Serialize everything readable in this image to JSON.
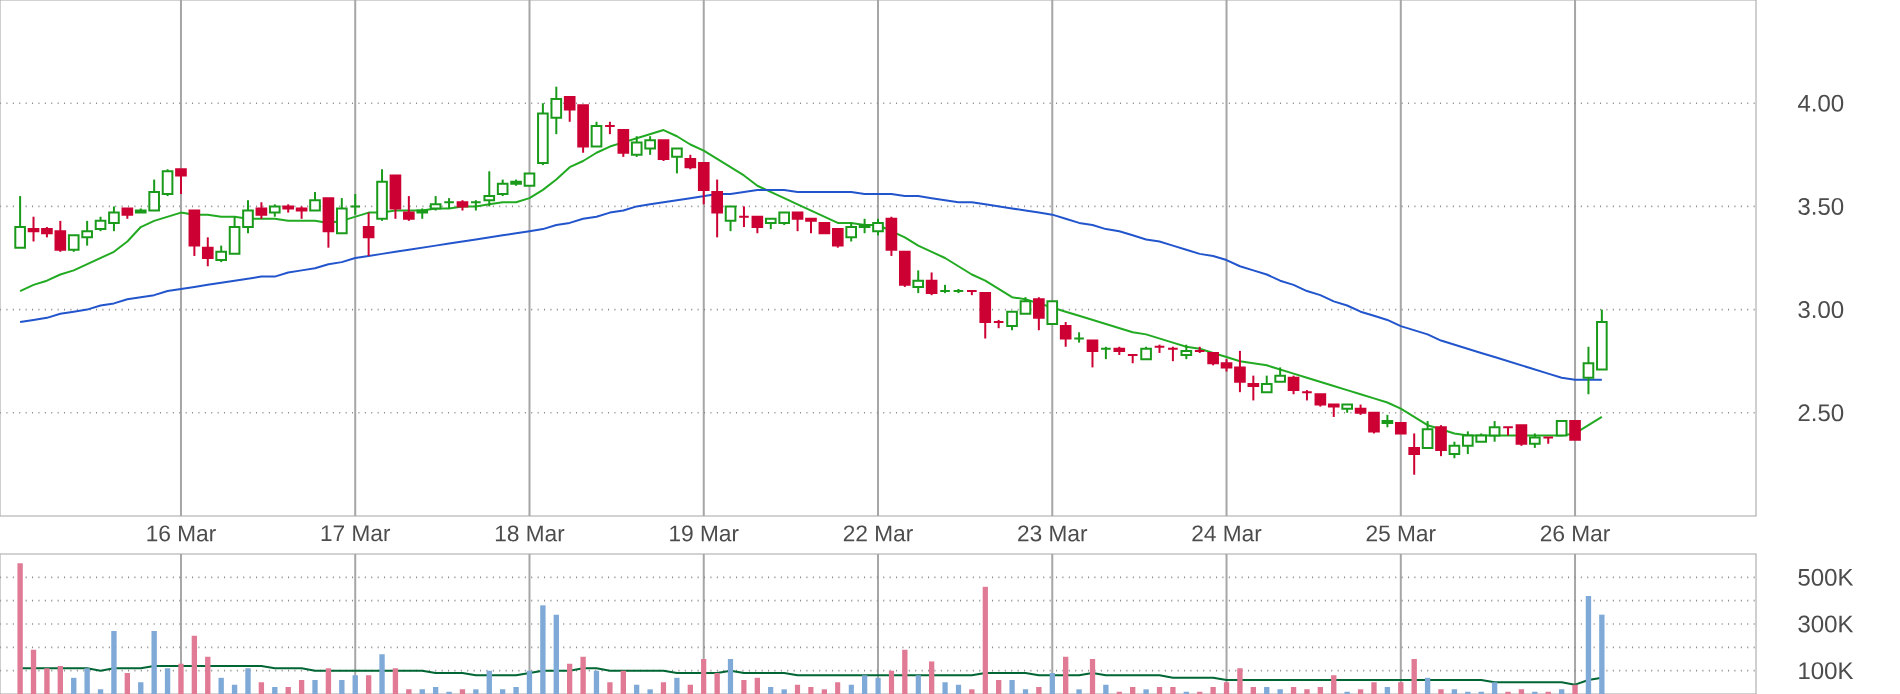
{
  "chart_data": [
    {
      "type": "candlestick",
      "grid": true,
      "categories": [
        null,
        null,
        null,
        null,
        null,
        null,
        null,
        null,
        null,
        null,
        null,
        null,
        null,
        "16 Mar",
        null,
        null,
        null,
        null,
        null,
        null,
        null,
        null,
        null,
        null,
        null,
        null,
        "17 Mar",
        null,
        null,
        null,
        null,
        null,
        null,
        null,
        null,
        null,
        null,
        null,
        null,
        "18 Mar",
        null,
        null,
        null,
        null,
        null,
        null,
        null,
        null,
        null,
        null,
        null,
        null,
        "19 Mar",
        null,
        null,
        null,
        null,
        null,
        null,
        null,
        null,
        null,
        null,
        null,
        null,
        "22 Mar",
        null,
        null,
        null,
        null,
        null,
        null,
        null,
        null,
        null,
        null,
        null,
        null,
        "23 Mar",
        null,
        null,
        null,
        null,
        null,
        null,
        null,
        null,
        null,
        null,
        null,
        null,
        "24 Mar",
        null,
        null,
        null,
        null,
        null,
        null,
        null,
        null,
        null,
        null,
        null,
        null,
        "25 Mar",
        null,
        null,
        null,
        null,
        null,
        null,
        null,
        null,
        null,
        null,
        null,
        null,
        "26 Mar",
        null,
        null,
        null,
        null,
        null,
        null,
        null,
        null,
        null,
        null,
        null,
        null,
        null
      ],
      "ohlc": [
        null,
        [
          3.3,
          3.55,
          3.3,
          3.4
        ],
        [
          3.39,
          3.45,
          3.33,
          3.38
        ],
        [
          3.39,
          3.4,
          3.35,
          3.37
        ],
        [
          3.38,
          3.43,
          3.28,
          3.29
        ],
        [
          3.29,
          3.36,
          3.28,
          3.36
        ],
        [
          3.35,
          3.43,
          3.31,
          3.38
        ],
        [
          3.39,
          3.45,
          3.38,
          3.43
        ],
        [
          3.42,
          3.5,
          3.38,
          3.47
        ],
        [
          3.49,
          3.49,
          3.44,
          3.46
        ],
        [
          3.47,
          3.49,
          3.47,
          3.48
        ],
        [
          3.48,
          3.63,
          3.48,
          3.57
        ],
        [
          3.56,
          3.68,
          3.55,
          3.67
        ],
        [
          3.68,
          3.68,
          3.56,
          3.65
        ],
        [
          3.48,
          3.48,
          3.26,
          3.31
        ],
        [
          3.3,
          3.35,
          3.21,
          3.25
        ],
        [
          3.24,
          3.31,
          3.23,
          3.28
        ],
        [
          3.27,
          3.45,
          3.27,
          3.4
        ],
        [
          3.4,
          3.53,
          3.37,
          3.48
        ],
        [
          3.49,
          3.52,
          3.44,
          3.46
        ],
        [
          3.47,
          3.51,
          3.45,
          3.5
        ],
        [
          3.5,
          3.51,
          3.47,
          3.49
        ],
        [
          3.49,
          3.5,
          3.44,
          3.48
        ],
        [
          3.48,
          3.57,
          3.48,
          3.53
        ],
        [
          3.54,
          3.54,
          3.3,
          3.38
        ],
        [
          3.37,
          3.54,
          3.37,
          3.49
        ],
        [
          3.5,
          3.56,
          3.46,
          3.5
        ],
        [
          3.4,
          3.47,
          3.26,
          3.35
        ],
        [
          3.44,
          3.68,
          3.43,
          3.62
        ],
        [
          3.65,
          3.65,
          3.44,
          3.49
        ],
        [
          3.47,
          3.55,
          3.43,
          3.44
        ],
        [
          3.47,
          3.49,
          3.44,
          3.48
        ],
        [
          3.49,
          3.55,
          3.48,
          3.51
        ],
        [
          3.52,
          3.54,
          3.49,
          3.52
        ],
        [
          3.52,
          3.53,
          3.48,
          3.5
        ],
        [
          3.52,
          3.53,
          3.48,
          3.52
        ],
        [
          3.53,
          3.67,
          3.5,
          3.55
        ],
        [
          3.56,
          3.63,
          3.55,
          3.61
        ],
        [
          3.61,
          3.63,
          3.6,
          3.62
        ],
        [
          3.6,
          3.66,
          3.6,
          3.66
        ],
        [
          3.71,
          4.0,
          3.7,
          3.95
        ],
        [
          3.93,
          4.08,
          3.85,
          4.02
        ],
        [
          4.03,
          4.03,
          3.91,
          3.97
        ],
        [
          3.99,
          3.99,
          3.76,
          3.79
        ],
        [
          3.79,
          3.91,
          3.79,
          3.89
        ],
        [
          3.89,
          3.91,
          3.85,
          3.89
        ],
        [
          3.87,
          3.87,
          3.74,
          3.76
        ],
        [
          3.75,
          3.84,
          3.74,
          3.81
        ],
        [
          3.78,
          3.84,
          3.75,
          3.82
        ],
        [
          3.82,
          3.82,
          3.72,
          3.73
        ],
        [
          3.74,
          3.78,
          3.66,
          3.78
        ],
        [
          3.73,
          3.75,
          3.68,
          3.69
        ],
        [
          3.71,
          3.71,
          3.51,
          3.58
        ],
        [
          3.57,
          3.63,
          3.35,
          3.47
        ],
        [
          3.43,
          3.5,
          3.38,
          3.5
        ],
        [
          3.45,
          3.5,
          3.4,
          3.45
        ],
        [
          3.45,
          3.45,
          3.37,
          3.4
        ],
        [
          3.42,
          3.44,
          3.39,
          3.44
        ],
        [
          3.42,
          3.47,
          3.41,
          3.47
        ],
        [
          3.47,
          3.47,
          3.38,
          3.44
        ],
        [
          3.44,
          3.44,
          3.37,
          3.43
        ],
        [
          3.42,
          3.42,
          3.37,
          3.37
        ],
        [
          3.39,
          3.39,
          3.3,
          3.31
        ],
        [
          3.35,
          3.42,
          3.33,
          3.4
        ],
        [
          3.4,
          3.44,
          3.37,
          3.41
        ],
        [
          3.38,
          3.44,
          3.36,
          3.42
        ],
        [
          3.44,
          3.45,
          3.26,
          3.29
        ],
        [
          3.28,
          3.28,
          3.11,
          3.12
        ],
        [
          3.11,
          3.19,
          3.08,
          3.14
        ],
        [
          3.14,
          3.18,
          3.07,
          3.08
        ],
        [
          3.09,
          3.12,
          3.08,
          3.09
        ],
        [
          3.09,
          3.1,
          3.08,
          3.09
        ],
        [
          3.09,
          3.09,
          3.07,
          3.09
        ],
        [
          3.08,
          3.08,
          2.86,
          2.94
        ],
        [
          2.94,
          2.95,
          2.91,
          2.94
        ],
        [
          2.92,
          2.99,
          2.9,
          2.99
        ],
        [
          2.98,
          3.06,
          2.98,
          3.04
        ],
        [
          3.05,
          3.06,
          2.9,
          2.96
        ],
        [
          2.93,
          3.04,
          2.93,
          3.04
        ],
        [
          2.92,
          2.94,
          2.82,
          2.86
        ],
        [
          2.86,
          2.89,
          2.84,
          2.86
        ],
        [
          2.85,
          2.85,
          2.72,
          2.8
        ],
        [
          2.81,
          2.82,
          2.76,
          2.81
        ],
        [
          2.81,
          2.82,
          2.78,
          2.8
        ],
        [
          2.78,
          2.78,
          2.74,
          2.78
        ],
        [
          2.76,
          2.82,
          2.76,
          2.81
        ],
        [
          2.82,
          2.83,
          2.79,
          2.82
        ],
        [
          2.81,
          2.82,
          2.75,
          2.81
        ],
        [
          2.78,
          2.83,
          2.76,
          2.8
        ],
        [
          2.8,
          2.82,
          2.79,
          2.8
        ],
        [
          2.79,
          2.79,
          2.73,
          2.74
        ],
        [
          2.74,
          2.76,
          2.7,
          2.72
        ],
        [
          2.72,
          2.8,
          2.6,
          2.65
        ],
        [
          2.64,
          2.68,
          2.56,
          2.63
        ],
        [
          2.6,
          2.68,
          2.6,
          2.64
        ],
        [
          2.65,
          2.72,
          2.65,
          2.68
        ],
        [
          2.67,
          2.68,
          2.59,
          2.61
        ],
        [
          2.6,
          2.61,
          2.56,
          2.6
        ],
        [
          2.59,
          2.59,
          2.53,
          2.54
        ],
        [
          2.54,
          2.54,
          2.48,
          2.53
        ],
        [
          2.52,
          2.54,
          2.5,
          2.54
        ],
        [
          2.52,
          2.54,
          2.49,
          2.5
        ],
        [
          2.5,
          2.5,
          2.4,
          2.41
        ],
        [
          2.45,
          2.49,
          2.43,
          2.46
        ],
        [
          2.45,
          2.45,
          2.4,
          2.4
        ],
        [
          2.33,
          2.4,
          2.2,
          2.3
        ],
        [
          2.33,
          2.46,
          2.33,
          2.42
        ],
        [
          2.43,
          2.44,
          2.29,
          2.32
        ],
        [
          2.3,
          2.36,
          2.28,
          2.34
        ],
        [
          2.34,
          2.41,
          2.3,
          2.39
        ],
        [
          2.36,
          2.4,
          2.36,
          2.39
        ],
        [
          2.39,
          2.46,
          2.36,
          2.43
        ],
        [
          2.43,
          2.43,
          2.39,
          2.43
        ],
        [
          2.44,
          2.44,
          2.34,
          2.35
        ],
        [
          2.35,
          2.4,
          2.33,
          2.38
        ],
        [
          2.38,
          2.38,
          2.35,
          2.38
        ],
        [
          2.39,
          2.46,
          2.39,
          2.46
        ],
        [
          2.46,
          2.46,
          2.37,
          2.37
        ],
        [
          2.67,
          2.82,
          2.59,
          2.74
        ],
        [
          2.71,
          3.0,
          2.71,
          2.94
        ],
        null,
        null,
        null,
        null,
        null,
        null,
        null,
        null,
        null,
        null,
        null
      ],
      "colors": [
        null,
        "#1a9a1a",
        "#cc0033",
        "#cc0033",
        "#cc0033",
        "#1a9a1a",
        "#1a9a1a",
        "#1a9a1a",
        "#1a9a1a",
        "#cc0033",
        "#1a9a1a",
        "#1a9a1a",
        "#1a9a1a",
        "#cc0033",
        "#cc0033",
        "#cc0033",
        "#1a9a1a",
        "#1a9a1a",
        "#1a9a1a",
        "#cc0033",
        "#1a9a1a",
        "#cc0033",
        "#cc0033",
        "#1a9a1a",
        "#cc0033",
        "#1a9a1a",
        "#1a9a1a",
        "#cc0033",
        "#1a9a1a",
        "#cc0033",
        "#cc0033",
        "#1a9a1a",
        "#1a9a1a",
        "#1a9a1a",
        "#cc0033",
        "#1a9a1a",
        "#1a9a1a",
        "#1a9a1a",
        "#1a9a1a",
        "#1a9a1a",
        "#1a9a1a",
        "#1a9a1a",
        "#cc0033",
        "#cc0033",
        "#1a9a1a",
        "#cc0033",
        "#cc0033",
        "#1a9a1a",
        "#1a9a1a",
        "#cc0033",
        "#1a9a1a",
        "#cc0033",
        "#cc0033",
        "#cc0033",
        "#1a9a1a",
        "#cc0033",
        "#cc0033",
        "#1a9a1a",
        "#1a9a1a",
        "#cc0033",
        "#cc0033",
        "#cc0033",
        "#cc0033",
        "#1a9a1a",
        "#1a9a1a",
        "#1a9a1a",
        "#cc0033",
        "#cc0033",
        "#1a9a1a",
        "#cc0033",
        "#1a9a1a",
        "#1a9a1a",
        "#cc0033",
        "#cc0033",
        "#cc0033",
        "#1a9a1a",
        "#1a9a1a",
        "#cc0033",
        "#1a9a1a",
        "#cc0033",
        "#1a9a1a",
        "#cc0033",
        "#1a9a1a",
        "#cc0033",
        "#cc0033",
        "#1a9a1a",
        "#cc0033",
        "#cc0033",
        "#1a9a1a",
        "#cc0033",
        "#cc0033",
        "#cc0033",
        "#cc0033",
        "#cc0033",
        "#1a9a1a",
        "#1a9a1a",
        "#cc0033",
        "#cc0033",
        "#cc0033",
        "#cc0033",
        "#1a9a1a",
        "#cc0033",
        "#cc0033",
        "#1a9a1a",
        "#cc0033",
        "#cc0033",
        "#1a9a1a",
        "#cc0033",
        "#1a9a1a",
        "#1a9a1a",
        "#1a9a1a",
        "#1a9a1a",
        "#cc0033",
        "#cc0033",
        "#1a9a1a",
        "#cc0033",
        "#1a9a1a",
        "#cc0033",
        "#1a9a1a",
        "#1a9a1a",
        null,
        null,
        null,
        null,
        null,
        null,
        null,
        null,
        null,
        null,
        null
      ],
      "series": [
        {
          "type": "line",
          "color": "#22aa22",
          "values": [
            null,
            3.09,
            3.12,
            3.14,
            3.17,
            3.19,
            3.22,
            3.25,
            3.28,
            3.33,
            3.4,
            3.43,
            3.45,
            3.47,
            3.46,
            3.46,
            3.45,
            3.45,
            3.44,
            3.44,
            3.44,
            3.43,
            3.43,
            3.43,
            3.42,
            3.43,
            3.45,
            3.47,
            3.47,
            3.48,
            3.48,
            3.48,
            3.49,
            3.49,
            3.5,
            3.5,
            3.51,
            3.52,
            3.52,
            3.54,
            3.58,
            3.63,
            3.69,
            3.72,
            3.76,
            3.79,
            3.81,
            3.83,
            3.85,
            3.87,
            3.84,
            3.8,
            3.77,
            3.73,
            3.69,
            3.65,
            3.6,
            3.57,
            3.54,
            3.51,
            3.48,
            3.45,
            3.42,
            3.42,
            3.41,
            3.41,
            3.38,
            3.35,
            3.31,
            3.28,
            3.25,
            3.21,
            3.17,
            3.14,
            3.1,
            3.06,
            3.05,
            3.03,
            3.01,
            2.99,
            2.97,
            2.95,
            2.93,
            2.91,
            2.89,
            2.88,
            2.86,
            2.84,
            2.82,
            2.81,
            2.79,
            2.77,
            2.75,
            2.74,
            2.73,
            2.71,
            2.69,
            2.67,
            2.65,
            2.63,
            2.61,
            2.59,
            2.57,
            2.55,
            2.52,
            2.48,
            2.44,
            2.42,
            2.4,
            2.39,
            2.39,
            2.39,
            2.39,
            2.39,
            2.39,
            2.39,
            2.39,
            2.4,
            2.44,
            2.48,
            null,
            null,
            null,
            null,
            null,
            null,
            null,
            null,
            null,
            null,
            null
          ]
        },
        {
          "type": "line",
          "color": "#2255cc",
          "values": [
            null,
            2.94,
            2.95,
            2.96,
            2.98,
            2.99,
            3.0,
            3.02,
            3.03,
            3.05,
            3.06,
            3.07,
            3.09,
            3.1,
            3.11,
            3.12,
            3.13,
            3.14,
            3.15,
            3.16,
            3.16,
            3.18,
            3.19,
            3.2,
            3.22,
            3.23,
            3.25,
            3.26,
            3.27,
            3.28,
            3.29,
            3.3,
            3.31,
            3.32,
            3.33,
            3.34,
            3.35,
            3.36,
            3.37,
            3.38,
            3.39,
            3.41,
            3.42,
            3.44,
            3.45,
            3.47,
            3.48,
            3.5,
            3.51,
            3.52,
            3.53,
            3.54,
            3.55,
            3.56,
            3.56,
            3.57,
            3.58,
            3.58,
            3.58,
            3.57,
            3.57,
            3.57,
            3.57,
            3.57,
            3.56,
            3.56,
            3.56,
            3.55,
            3.55,
            3.54,
            3.53,
            3.52,
            3.52,
            3.51,
            3.5,
            3.49,
            3.48,
            3.47,
            3.46,
            3.44,
            3.42,
            3.41,
            3.39,
            3.38,
            3.36,
            3.34,
            3.33,
            3.31,
            3.29,
            3.27,
            3.26,
            3.24,
            3.21,
            3.19,
            3.17,
            3.14,
            3.12,
            3.09,
            3.07,
            3.04,
            3.02,
            2.99,
            2.97,
            2.95,
            2.92,
            2.9,
            2.88,
            2.85,
            2.83,
            2.81,
            2.79,
            2.77,
            2.75,
            2.73,
            2.71,
            2.69,
            2.67,
            2.66,
            2.66,
            2.66,
            null,
            null,
            null,
            null,
            null,
            null,
            null,
            null,
            null,
            null,
            null
          ]
        }
      ],
      "ylim": [
        2.0,
        4.5
      ],
      "yticks": [
        {
          "value": 2.5,
          "label": "2.50"
        },
        {
          "value": 3.0,
          "label": "3.00"
        },
        {
          "value": 3.5,
          "label": "3.50"
        },
        {
          "value": 4.0,
          "label": "4.00"
        }
      ]
    },
    {
      "type": "bar",
      "grid": true,
      "tick_labels": "y",
      "categories": [
        null,
        null,
        null,
        null,
        null,
        null,
        null,
        null,
        null,
        null,
        null,
        null,
        null,
        null,
        null,
        null,
        null,
        null,
        null,
        null,
        null,
        null,
        null,
        null,
        null,
        null,
        null,
        null,
        null,
        null,
        null,
        null,
        null,
        null,
        null,
        null,
        null,
        null,
        null,
        null,
        null,
        null,
        null,
        null,
        null,
        null,
        null,
        null,
        null,
        null,
        null,
        null,
        null,
        null,
        null,
        null,
        null,
        null,
        null,
        null,
        null,
        null,
        null,
        null,
        null,
        null,
        null,
        null,
        null,
        null,
        null,
        null,
        null,
        null,
        null,
        null,
        null,
        null,
        null,
        null,
        null,
        null,
        null,
        null,
        null,
        null,
        null,
        null,
        null,
        null,
        null,
        null,
        null,
        null,
        null,
        null,
        null,
        null,
        null,
        null,
        null,
        null,
        null,
        null,
        null,
        null,
        null,
        null,
        null,
        null,
        null,
        null,
        null,
        null,
        null,
        null,
        null,
        null,
        null,
        null,
        null,
        null,
        null,
        null,
        null,
        null,
        null,
        null,
        null,
        null,
        null
      ],
      "series": [
        {
          "type": "bar",
          "values": [
            null,
            560,
            190,
            110,
            120,
            70,
            110,
            20,
            270,
            90,
            50,
            270,
            110,
            130,
            250,
            160,
            70,
            40,
            110,
            50,
            30,
            30,
            60,
            60,
            110,
            60,
            80,
            80,
            170,
            110,
            20,
            20,
            30,
            10,
            20,
            20,
            100,
            20,
            30,
            100,
            380,
            340,
            130,
            160,
            100,
            50,
            100,
            40,
            20,
            50,
            70,
            40,
            150,
            90,
            150,
            60,
            70,
            30,
            20,
            40,
            30,
            20,
            50,
            40,
            80,
            70,
            100,
            190,
            80,
            140,
            50,
            40,
            20,
            460,
            60,
            60,
            20,
            30,
            90,
            160,
            20,
            150,
            40,
            10,
            30,
            20,
            30,
            30,
            10,
            10,
            30,
            50,
            110,
            30,
            30,
            20,
            30,
            20,
            30,
            80,
            10,
            20,
            50,
            30,
            50,
            150,
            70,
            20,
            20,
            10,
            10,
            50,
            10,
            20,
            10,
            10,
            20,
            40,
            420,
            340,
            null,
            null,
            null,
            null,
            null,
            null,
            null,
            null,
            null,
            null,
            null
          ],
          "colors": [
            null,
            "#e07a95",
            "#e07a95",
            "#e07a95",
            "#e07a95",
            "#7fa9d6",
            "#7fa9d6",
            "#7fa9d6",
            "#7fa9d6",
            "#e07a95",
            "#7fa9d6",
            "#7fa9d6",
            "#7fa9d6",
            "#e07a95",
            "#e07a95",
            "#e07a95",
            "#7fa9d6",
            "#7fa9d6",
            "#7fa9d6",
            "#e07a95",
            "#7fa9d6",
            "#e07a95",
            "#e07a95",
            "#7fa9d6",
            "#e07a95",
            "#7fa9d6",
            "#7fa9d6",
            "#e07a95",
            "#7fa9d6",
            "#e07a95",
            "#e07a95",
            "#7fa9d6",
            "#7fa9d6",
            "#7fa9d6",
            "#e07a95",
            "#7fa9d6",
            "#7fa9d6",
            "#7fa9d6",
            "#7fa9d6",
            "#7fa9d6",
            "#7fa9d6",
            "#7fa9d6",
            "#e07a95",
            "#e07a95",
            "#7fa9d6",
            "#e07a95",
            "#e07a95",
            "#7fa9d6",
            "#7fa9d6",
            "#e07a95",
            "#7fa9d6",
            "#e07a95",
            "#e07a95",
            "#e07a95",
            "#7fa9d6",
            "#e07a95",
            "#e07a95",
            "#7fa9d6",
            "#7fa9d6",
            "#e07a95",
            "#e07a95",
            "#e07a95",
            "#e07a95",
            "#7fa9d6",
            "#7fa9d6",
            "#7fa9d6",
            "#e07a95",
            "#e07a95",
            "#7fa9d6",
            "#e07a95",
            "#7fa9d6",
            "#7fa9d6",
            "#e07a95",
            "#e07a95",
            "#e07a95",
            "#7fa9d6",
            "#7fa9d6",
            "#e07a95",
            "#7fa9d6",
            "#e07a95",
            "#7fa9d6",
            "#e07a95",
            "#7fa9d6",
            "#e07a95",
            "#e07a95",
            "#7fa9d6",
            "#e07a95",
            "#e07a95",
            "#7fa9d6",
            "#e07a95",
            "#e07a95",
            "#e07a95",
            "#e07a95",
            "#e07a95",
            "#7fa9d6",
            "#7fa9d6",
            "#e07a95",
            "#e07a95",
            "#e07a95",
            "#e07a95",
            "#7fa9d6",
            "#e07a95",
            "#e07a95",
            "#7fa9d6",
            "#e07a95",
            "#e07a95",
            "#7fa9d6",
            "#e07a95",
            "#7fa9d6",
            "#7fa9d6",
            "#7fa9d6",
            "#7fa9d6",
            "#e07a95",
            "#e07a95",
            "#7fa9d6",
            "#e07a95",
            "#7fa9d6",
            "#e07a95",
            "#7fa9d6",
            "#7fa9d6",
            null,
            null,
            null,
            null,
            null,
            null,
            null,
            null,
            null,
            null,
            null
          ]
        },
        {
          "type": "line",
          "color": "#006633",
          "values": [
            null,
            110,
            110,
            110,
            110,
            110,
            110,
            100,
            110,
            110,
            110,
            120,
            120,
            120,
            120,
            120,
            120,
            120,
            120,
            120,
            110,
            110,
            110,
            100,
            100,
            100,
            100,
            100,
            100,
            100,
            100,
            100,
            90,
            90,
            90,
            80,
            80,
            80,
            80,
            90,
            100,
            100,
            100,
            110,
            110,
            100,
            100,
            100,
            100,
            100,
            90,
            90,
            90,
            90,
            100,
            90,
            90,
            90,
            90,
            80,
            80,
            80,
            80,
            80,
            80,
            80,
            80,
            80,
            80,
            80,
            80,
            80,
            80,
            90,
            90,
            90,
            90,
            80,
            80,
            80,
            80,
            90,
            80,
            80,
            80,
            80,
            80,
            70,
            70,
            70,
            70,
            60,
            60,
            60,
            60,
            60,
            60,
            60,
            60,
            60,
            60,
            60,
            60,
            60,
            60,
            60,
            60,
            60,
            60,
            60,
            60,
            50,
            50,
            50,
            50,
            50,
            50,
            40,
            60,
            70,
            null,
            null,
            null,
            null,
            null,
            null,
            null,
            null,
            null,
            null,
            null
          ]
        }
      ],
      "ylim": [
        0,
        600
      ],
      "yticks": [
        {
          "value": 100,
          "label": "100K"
        },
        {
          "value": 200,
          "label": null
        },
        {
          "value": 300,
          "label": "300K"
        },
        {
          "value": 400,
          "label": null
        },
        {
          "value": 500,
          "label": "500K"
        }
      ]
    }
  ]
}
